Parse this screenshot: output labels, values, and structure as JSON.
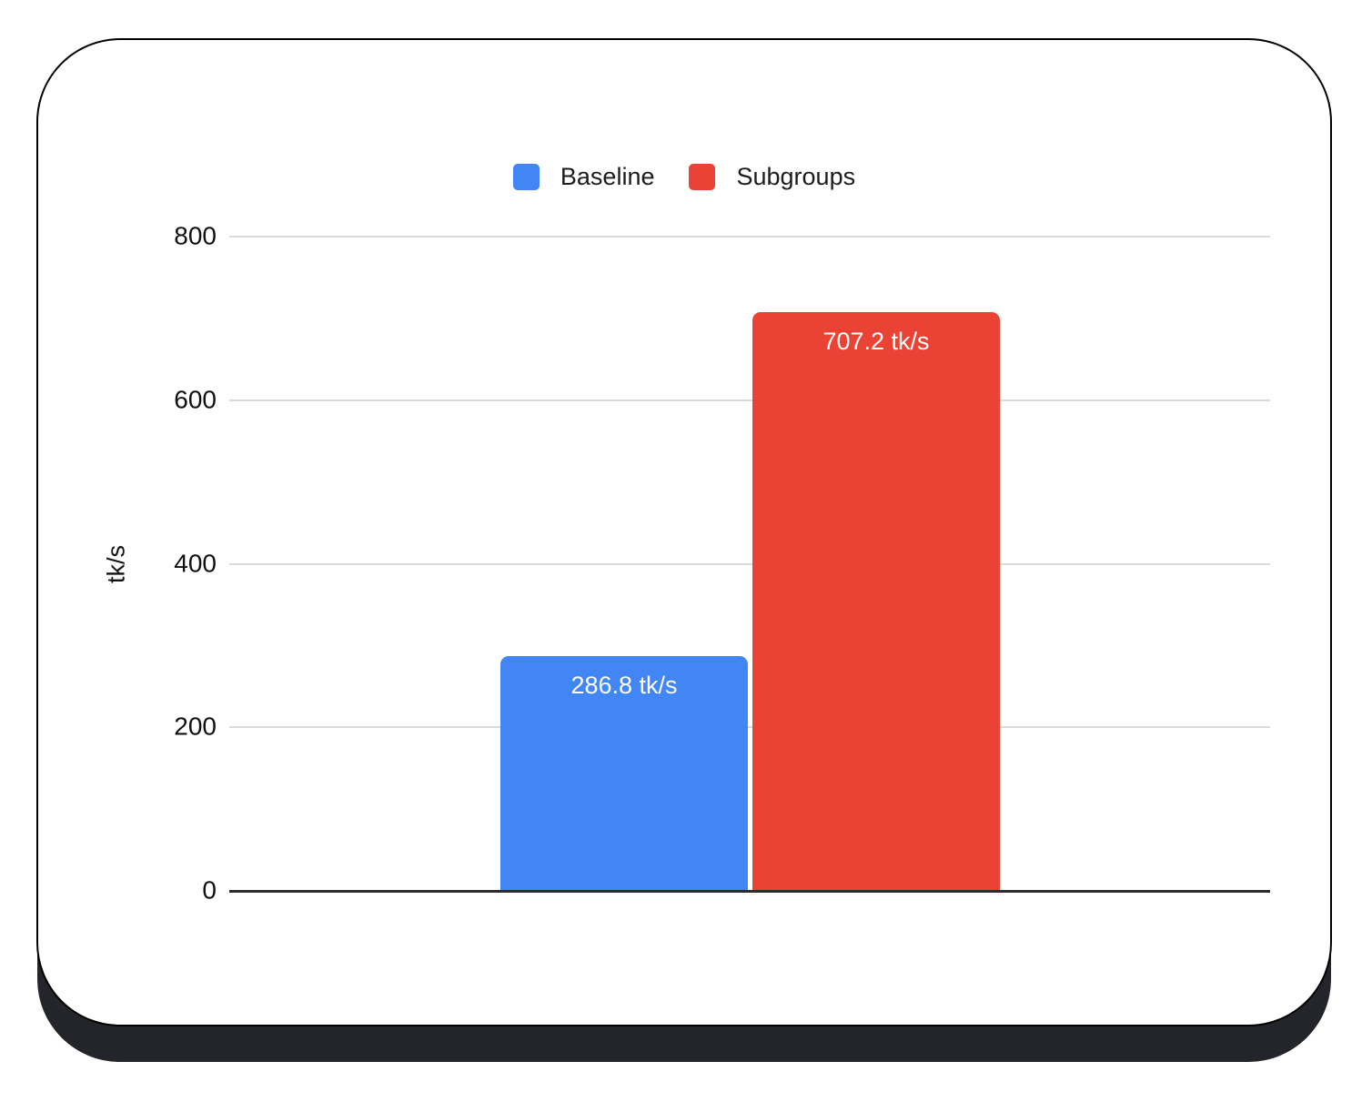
{
  "legend": {
    "items": [
      {
        "label": "Baseline",
        "color": "#4285f4"
      },
      {
        "label": "Subgroups",
        "color": "#ea4335"
      }
    ]
  },
  "chart_data": {
    "type": "bar",
    "title": "",
    "xlabel": "",
    "ylabel": "tk/s",
    "ylim": [
      0,
      800
    ],
    "yticks": [
      0,
      200,
      400,
      600,
      800
    ],
    "grid": true,
    "legend_position": "top-center",
    "categories": [
      "Baseline",
      "Subgroups"
    ],
    "series": [
      {
        "name": "Baseline",
        "value": 286.8,
        "label": "286.8 tk/s",
        "color": "#4285f4"
      },
      {
        "name": "Subgroups",
        "value": 707.2,
        "label": "707.2 tk/s",
        "color": "#ea4335"
      }
    ],
    "colors": {
      "baseline": "#4285f4",
      "subgroups": "#ea4335",
      "gridline": "#dadada",
      "axis": "#2d2d2d"
    }
  }
}
